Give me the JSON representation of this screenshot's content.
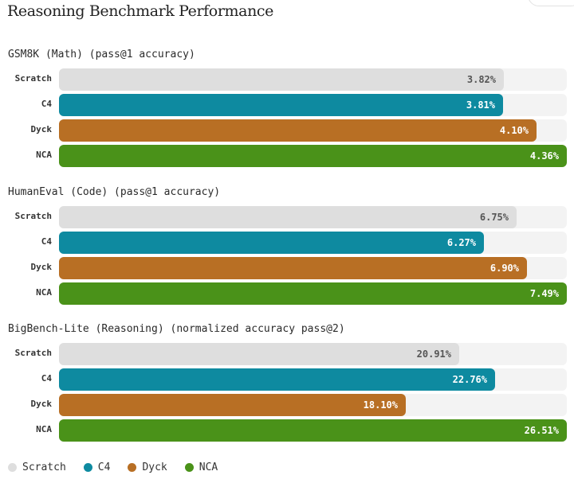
{
  "title": "Reasoning Benchmark Performance",
  "colors": {
    "Scratch": "#dedede",
    "C4": "#0e8aa0",
    "Dyck": "#b86f24",
    "NCA": "#4a9219"
  },
  "value_text_colors": {
    "Scratch": "#555555",
    "C4": "#ffffff",
    "Dyck": "#ffffff",
    "NCA": "#ffffff"
  },
  "legend": [
    "Scratch",
    "C4",
    "Dyck",
    "NCA"
  ],
  "chart_data": [
    {
      "type": "bar",
      "orientation": "horizontal",
      "title": "GSM8K (Math) (pass@1 accuracy)",
      "categories": [
        "Scratch",
        "C4",
        "Dyck",
        "NCA"
      ],
      "values": [
        3.82,
        3.81,
        4.1,
        4.36
      ],
      "labels": [
        "3.82%",
        "3.81%",
        "4.10%",
        "4.36%"
      ],
      "xlim": [
        0,
        4.36
      ]
    },
    {
      "type": "bar",
      "orientation": "horizontal",
      "title": "HumanEval (Code) (pass@1 accuracy)",
      "categories": [
        "Scratch",
        "C4",
        "Dyck",
        "NCA"
      ],
      "values": [
        6.75,
        6.27,
        6.9,
        7.49
      ],
      "labels": [
        "6.75%",
        "6.27%",
        "6.90%",
        "7.49%"
      ],
      "xlim": [
        0,
        7.49
      ]
    },
    {
      "type": "bar",
      "orientation": "horizontal",
      "title": "BigBench-Lite (Reasoning) (normalized accuracy pass@2)",
      "categories": [
        "Scratch",
        "C4",
        "Dyck",
        "NCA"
      ],
      "values": [
        20.91,
        22.76,
        18.1,
        26.51
      ],
      "labels": [
        "20.91%",
        "22.76%",
        "18.10%",
        "26.51%"
      ],
      "xlim": [
        0,
        26.51
      ]
    }
  ]
}
